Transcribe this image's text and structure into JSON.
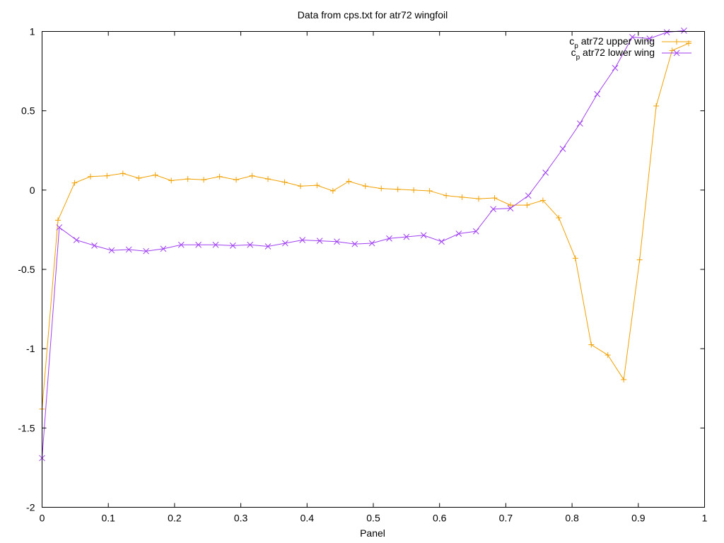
{
  "chart_data": {
    "type": "line",
    "title": "Data from cps.txt for atr72 wingfoil",
    "xlabel": "Panel",
    "ylabel": "",
    "xlim": [
      0,
      1
    ],
    "ylim": [
      -2,
      1
    ],
    "xticks": [
      "0",
      "0.1",
      "0.2",
      "0.3",
      "0.4",
      "0.5",
      "0.6",
      "0.7",
      "0.8",
      "0.9",
      "1"
    ],
    "xtick_values": [
      0,
      0.1,
      0.2,
      0.3,
      0.4,
      0.5,
      0.6,
      0.7,
      0.8,
      0.9,
      1
    ],
    "yticks": [
      "1",
      "0.5",
      "0",
      "-0.5",
      "-1",
      "-1.5",
      "-2"
    ],
    "ytick_values": [
      1,
      0.5,
      0,
      -0.5,
      -1,
      -1.5,
      -2
    ],
    "grid": false,
    "legend_position": "top-right",
    "series": [
      {
        "name": "c",
        "name_sub": "p",
        "name_rest": " atr72 upper wing",
        "color": "#f0a000",
        "marker": "plus",
        "x": [
          0,
          0.024,
          0.049,
          0.073,
          0.098,
          0.122,
          0.146,
          0.171,
          0.195,
          0.22,
          0.244,
          0.268,
          0.293,
          0.317,
          0.341,
          0.366,
          0.39,
          0.415,
          0.439,
          0.463,
          0.488,
          0.512,
          0.537,
          0.561,
          0.585,
          0.61,
          0.634,
          0.659,
          0.683,
          0.707,
          0.732,
          0.756,
          0.78,
          0.805,
          0.829,
          0.854,
          0.878,
          0.902,
          0.927,
          0.951,
          0.976
        ],
        "y": [
          -1.38,
          -0.19,
          0.045,
          0.085,
          0.09,
          0.105,
          0.075,
          0.095,
          0.06,
          0.07,
          0.065,
          0.085,
          0.065,
          0.09,
          0.07,
          0.05,
          0.025,
          0.03,
          -0.005,
          0.055,
          0.025,
          0.01,
          0.005,
          0,
          -0.005,
          -0.035,
          -0.045,
          -0.055,
          -0.05,
          -0.095,
          -0.095,
          -0.065,
          -0.175,
          -0.43,
          -0.975,
          -1.04,
          -1.195,
          -0.44,
          0.53,
          0.88,
          0.925
        ]
      },
      {
        "name": "c",
        "name_sub": "p",
        "name_rest": " atr72 lower wing",
        "color": "#a040f0",
        "marker": "cross",
        "x": [
          0,
          0.026,
          0.052,
          0.079,
          0.105,
          0.131,
          0.157,
          0.183,
          0.21,
          0.236,
          0.262,
          0.288,
          0.314,
          0.341,
          0.367,
          0.393,
          0.419,
          0.445,
          0.472,
          0.498,
          0.524,
          0.55,
          0.576,
          0.603,
          0.629,
          0.655,
          0.681,
          0.707,
          0.734,
          0.76,
          0.786,
          0.812,
          0.838,
          0.865,
          0.891,
          0.917,
          0.943,
          0.969
        ],
        "y": [
          -1.69,
          -0.235,
          -0.315,
          -0.35,
          -0.38,
          -0.375,
          -0.385,
          -0.37,
          -0.345,
          -0.345,
          -0.345,
          -0.35,
          -0.345,
          -0.355,
          -0.335,
          -0.315,
          -0.32,
          -0.325,
          -0.34,
          -0.335,
          -0.305,
          -0.295,
          -0.285,
          -0.325,
          -0.275,
          -0.26,
          -0.12,
          -0.115,
          -0.035,
          0.11,
          0.26,
          0.42,
          0.605,
          0.77,
          0.965,
          0.955,
          0.995,
          1.005
        ]
      }
    ]
  }
}
